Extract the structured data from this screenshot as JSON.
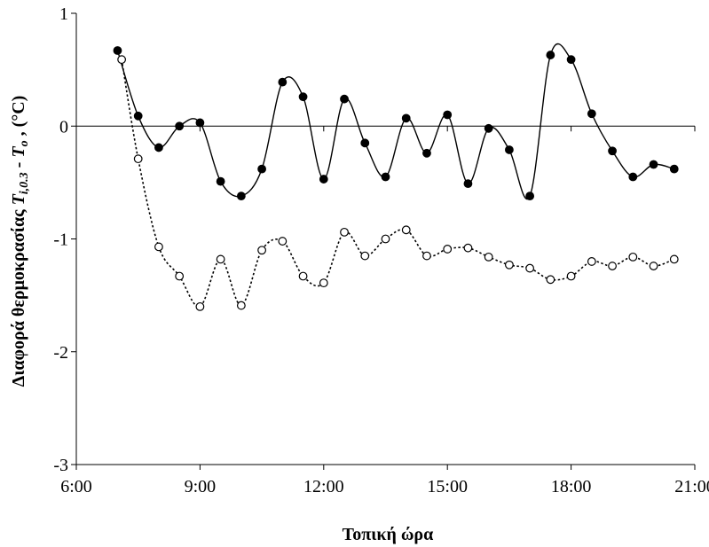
{
  "chart_data": {
    "type": "line",
    "title": "",
    "xlabel": "Τοπική ώρα",
    "ylabel": {
      "prefix": "Διαφορά θερμοκρασίας ",
      "italic": "T",
      "sub": "i,0.3",
      "mid": " - ",
      "italic2": "T",
      "sub2": "o",
      "suffix": " , (°C)"
    },
    "xlim": [
      6,
      21
    ],
    "ylim": [
      -3,
      1
    ],
    "x_ticks": [
      6,
      9,
      12,
      15,
      18,
      21
    ],
    "x_tick_labels": [
      "6:00",
      "9:00",
      "12:00",
      "15:00",
      "18:00",
      "21:00"
    ],
    "y_ticks": [
      1,
      0,
      -1,
      -2,
      -3
    ],
    "y_tick_labels": [
      "1",
      "0",
      "-1",
      "-2",
      "-3"
    ],
    "zero_line": true,
    "grid": false,
    "series": [
      {
        "marker": "filled-circle",
        "line": "solid",
        "color": "#000000",
        "x": [
          7.0,
          7.5,
          8.0,
          8.5,
          9.0,
          9.5,
          10.0,
          10.5,
          11.0,
          11.5,
          12.0,
          12.5,
          13.0,
          13.5,
          14.0,
          14.5,
          15.0,
          15.5,
          16.0,
          16.5,
          17.0,
          17.5,
          18.0,
          18.5,
          19.0,
          19.5,
          20.0,
          20.5
        ],
        "y": [
          0.67,
          0.09,
          -0.19,
          0.0,
          0.03,
          -0.49,
          -0.62,
          -0.38,
          0.39,
          0.26,
          -0.47,
          0.24,
          -0.15,
          -0.45,
          0.07,
          -0.24,
          0.1,
          -0.51,
          -0.02,
          -0.21,
          -0.62,
          0.63,
          0.59,
          0.11,
          -0.22,
          -0.45,
          -0.34,
          -0.38
        ]
      },
      {
        "marker": "open-circle",
        "line": "dotted",
        "color": "#000000",
        "x": [
          7.1,
          7.5,
          8.0,
          8.5,
          9.0,
          9.5,
          10.0,
          10.5,
          11.0,
          11.5,
          12.0,
          12.5,
          13.0,
          13.5,
          14.0,
          14.5,
          15.0,
          15.5,
          16.0,
          16.5,
          17.0,
          17.5,
          18.0,
          18.5,
          19.0,
          19.5,
          20.0,
          20.5
        ],
        "y": [
          0.59,
          -0.29,
          -1.07,
          -1.33,
          -1.6,
          -1.18,
          -1.59,
          -1.1,
          -1.02,
          -1.33,
          -1.39,
          -0.94,
          -1.15,
          -1.0,
          -0.92,
          -1.15,
          -1.09,
          -1.08,
          -1.16,
          -1.23,
          -1.26,
          -1.36,
          -1.33,
          -1.2,
          -1.24,
          -1.16,
          -1.24,
          -1.18
        ]
      }
    ]
  }
}
